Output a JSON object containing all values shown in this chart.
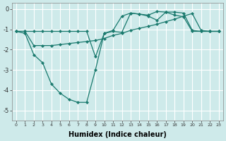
{
  "xlabel": "Humidex (Indice chaleur)",
  "background_color": "#ceeaea",
  "grid_color": "#ffffff",
  "line_color": "#1a7a6e",
  "x_values": [
    0,
    1,
    2,
    3,
    4,
    5,
    6,
    7,
    8,
    9,
    10,
    11,
    12,
    13,
    14,
    15,
    16,
    17,
    18,
    19,
    20,
    21,
    22,
    23
  ],
  "line1": [
    -1.1,
    -1.2,
    -2.25,
    -2.65,
    -3.7,
    -4.15,
    -4.45,
    -4.6,
    -4.6,
    -3.0,
    -1.2,
    -1.1,
    -1.15,
    -0.2,
    -0.25,
    -0.35,
    -0.55,
    -0.15,
    -0.15,
    -0.2,
    -1.05,
    -1.1,
    -1.1,
    -1.1
  ],
  "line2": [
    -1.1,
    -1.1,
    -1.8,
    -1.8,
    -1.8,
    -1.75,
    -1.7,
    -1.65,
    -1.6,
    -1.55,
    -1.45,
    -1.3,
    -1.2,
    -1.05,
    -0.95,
    -0.85,
    -0.75,
    -0.62,
    -0.5,
    -0.35,
    -0.22,
    -1.05,
    -1.1,
    -1.1
  ],
  "line3": [
    -1.1,
    -1.1,
    -1.1,
    -1.1,
    -1.1,
    -1.1,
    -1.1,
    -1.1,
    -1.1,
    -2.35,
    -1.2,
    -1.05,
    -0.35,
    -0.2,
    -0.25,
    -0.3,
    -0.12,
    -0.15,
    -0.3,
    -0.38,
    -1.1,
    -1.1,
    -1.1,
    -1.1
  ],
  "ylim": [
    -5.5,
    0.3
  ],
  "xlim": [
    -0.5,
    23.5
  ],
  "yticks": [
    0,
    -1,
    -2,
    -3,
    -4,
    -5
  ],
  "xticks": [
    0,
    1,
    2,
    3,
    4,
    5,
    6,
    7,
    8,
    9,
    10,
    11,
    12,
    13,
    14,
    15,
    16,
    17,
    18,
    19,
    20,
    21,
    22,
    23
  ]
}
